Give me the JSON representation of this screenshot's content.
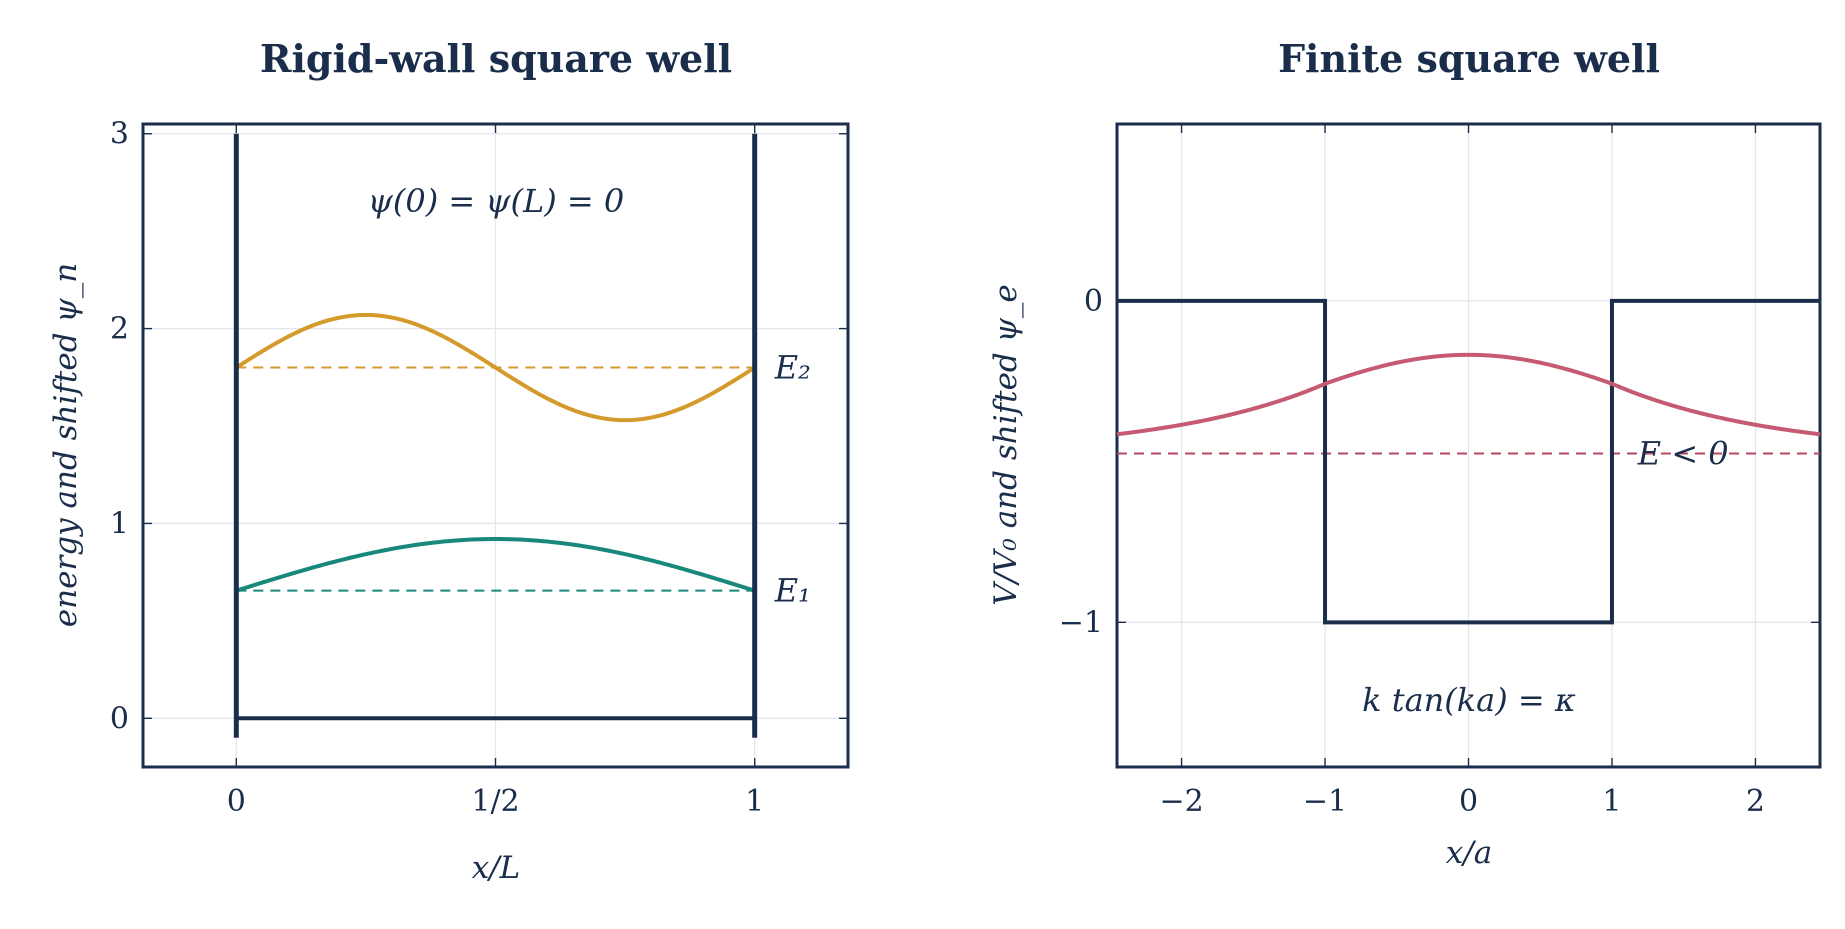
{
  "colors": {
    "ink": "#1a2e4c",
    "grid": "#e3e6ea",
    "level1": "#17887a",
    "level2": "#d49b2c",
    "finite": "#c55a72",
    "finite_label": "#b9475f"
  },
  "chart_data": [
    {
      "type": "line",
      "title": "Rigid-wall square well",
      "xlabel": "x/L",
      "ylabel": "energy and shifted ψ_n",
      "xlim": [
        -0.18,
        1.18
      ],
      "ylim": [
        -0.25,
        3.05
      ],
      "x_ticks": [
        0,
        0.5,
        1
      ],
      "x_tick_labels": [
        "0",
        "1/2",
        "1"
      ],
      "y_ticks": [
        0,
        1,
        2,
        3
      ],
      "y_tick_labels": [
        "0",
        "1",
        "2",
        "3"
      ],
      "grid": true,
      "annotation": "ψ(0) = ψ(L) = 0",
      "potential": {
        "floor": {
          "x": [
            0,
            1
          ],
          "y": [
            0,
            0
          ]
        },
        "walls": [
          {
            "x": 0,
            "y": [
              -0.1,
              3.0
            ]
          },
          {
            "x": 1,
            "y": [
              -0.1,
              3.0
            ]
          }
        ]
      },
      "levels": [
        {
          "name": "E₁",
          "energy": 0.655,
          "amplitude": 0.265,
          "n": 1,
          "color_key": "level1"
        },
        {
          "name": "E₂",
          "energy": 1.8,
          "amplitude": 0.27,
          "n": 2,
          "color_key": "level2"
        }
      ]
    },
    {
      "type": "line",
      "title": "Finite square well",
      "xlabel": "x/a",
      "ylabel": "V/V₀ and shifted ψ_e",
      "xlim": [
        -2.45,
        2.45
      ],
      "ylim": [
        -1.45,
        0.55
      ],
      "x_ticks": [
        -2,
        -1,
        0,
        1,
        2
      ],
      "x_tick_labels": [
        "−2",
        "−1",
        "0",
        "1",
        "2"
      ],
      "y_ticks": [
        -1,
        0
      ],
      "y_tick_labels": [
        "−1",
        "0"
      ],
      "grid": true,
      "annotation": "k tan(ka) = κ",
      "potential": {
        "x": [
          -2.45,
          -1,
          -1,
          1,
          1,
          2.45
        ],
        "y": [
          0,
          0,
          -1,
          -1,
          0,
          0
        ]
      },
      "bound_state": {
        "energy_label": "E < 0",
        "energy": -0.475,
        "peak": -0.168,
        "value_at_wall": -0.258,
        "value_at_edge": -0.415
      }
    }
  ]
}
